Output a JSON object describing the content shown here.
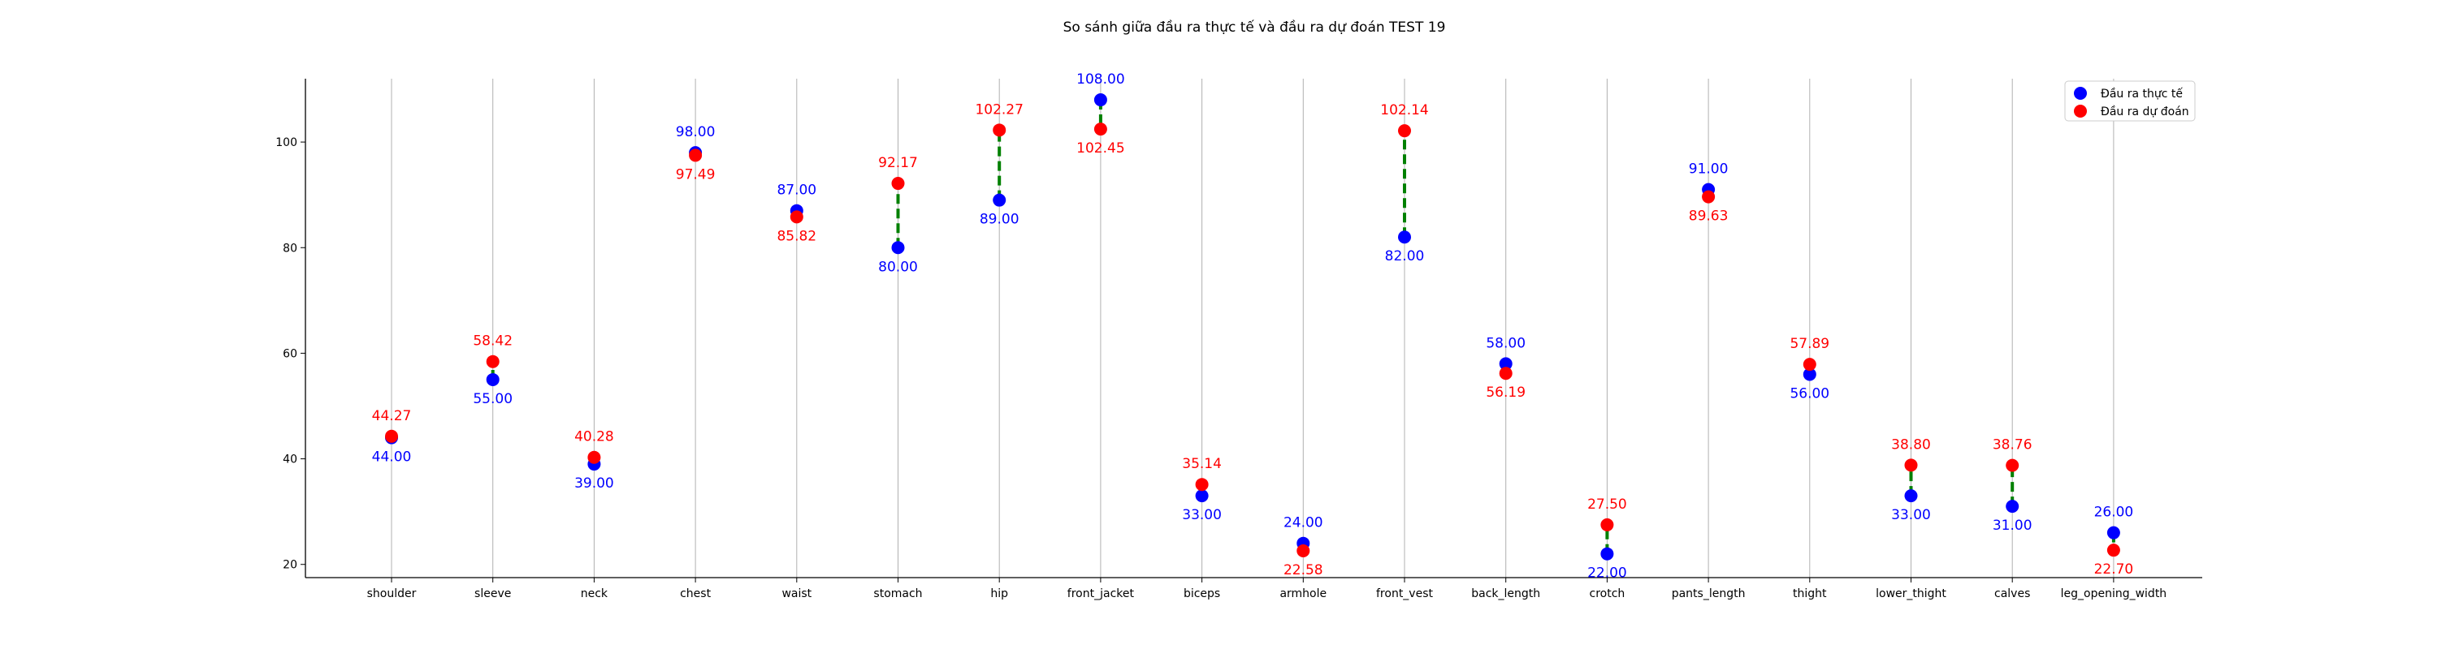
{
  "chart_data": {
    "type": "scatter",
    "title": "So sánh giữa đầu ra thực tế và đầu ra dự đoán TEST 19",
    "xlabel": "",
    "ylabel": "",
    "categories": [
      "shoulder",
      "sleeve",
      "neck",
      "chest",
      "waist",
      "stomach",
      "hip",
      "front_jacket",
      "biceps",
      "armhole",
      "front_vest",
      "back_length",
      "crotch",
      "pants_length",
      "thight",
      "lower_thight",
      "calves",
      "leg_opening_width"
    ],
    "series": [
      {
        "name": "Đầu ra thực tế",
        "color": "#0000ff",
        "values": [
          44.0,
          55.0,
          39.0,
          98.0,
          87.0,
          80.0,
          89.0,
          108.0,
          33.0,
          24.0,
          82.0,
          58.0,
          22.0,
          91.0,
          56.0,
          33.0,
          31.0,
          26.0
        ],
        "labels": [
          "44.00",
          "55.00",
          "39.00",
          "98.00",
          "87.00",
          "80.00",
          "89.00",
          "108.00",
          "33.00",
          "24.00",
          "82.00",
          "58.00",
          "22.00",
          "91.00",
          "56.00",
          "33.00",
          "31.00",
          "26.00"
        ]
      },
      {
        "name": "Đầu ra dự đoán",
        "color": "#ff0000",
        "values": [
          44.27,
          58.42,
          40.28,
          97.49,
          85.82,
          92.17,
          102.27,
          102.45,
          35.14,
          22.58,
          102.14,
          56.19,
          27.5,
          89.63,
          57.89,
          38.8,
          38.76,
          22.7
        ],
        "labels": [
          "44.27",
          "58.42",
          "40.28",
          "97.49",
          "85.82",
          "92.17",
          "102.27",
          "102.45",
          "35.14",
          "22.58",
          "102.14",
          "56.19",
          "27.50",
          "89.63",
          "57.89",
          "38.80",
          "38.76",
          "22.70"
        ]
      }
    ],
    "connector_color": "#008000",
    "ylim": [
      17.5,
      112
    ],
    "yticks": [
      "20",
      "40",
      "60",
      "80",
      "100"
    ],
    "grid": "vertical",
    "legend_position": "top-right"
  }
}
